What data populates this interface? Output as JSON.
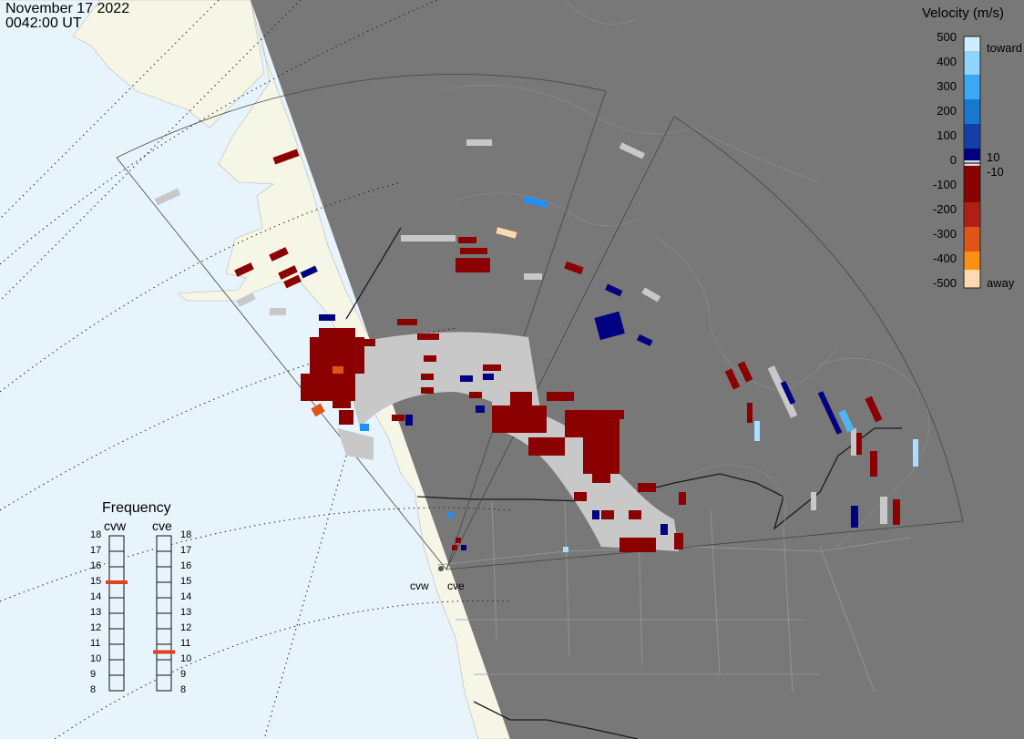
{
  "header": {
    "date": "November 17 2022",
    "time": "0042:00 UT"
  },
  "colors": {
    "ocean": "#e8f4fc",
    "land": "#f6f6e6",
    "night": "#787878",
    "ground_scatter": "#c8c8c8",
    "away_dark": "#8b0000",
    "toward_dark": "#000080",
    "toward_mid": "#1e90ff",
    "toward_light": "#aaddff",
    "away_mid": "#e0541a",
    "away_light": "#ffd8b0",
    "freq_marker": "#e04020"
  },
  "colorbar": {
    "title": "Velocity (m/s)",
    "ticks": [
      "500",
      "400",
      "300",
      "200",
      "100",
      "0",
      "-100",
      "-200",
      "-300",
      "-400",
      "-500"
    ],
    "toward_label": "toward",
    "away_label": "away",
    "pos_label": "10",
    "neg_label": "-10"
  },
  "sites": {
    "west": "cvw",
    "east": "cve"
  },
  "frequency": {
    "title": "Frequency",
    "radars": [
      "cvw",
      "cve"
    ],
    "scale": [
      "18",
      "17",
      "16",
      "15",
      "14",
      "13",
      "12",
      "11",
      "10",
      "9",
      "8"
    ],
    "cvw_mhz": 15,
    "cve_mhz": 10.5
  }
}
